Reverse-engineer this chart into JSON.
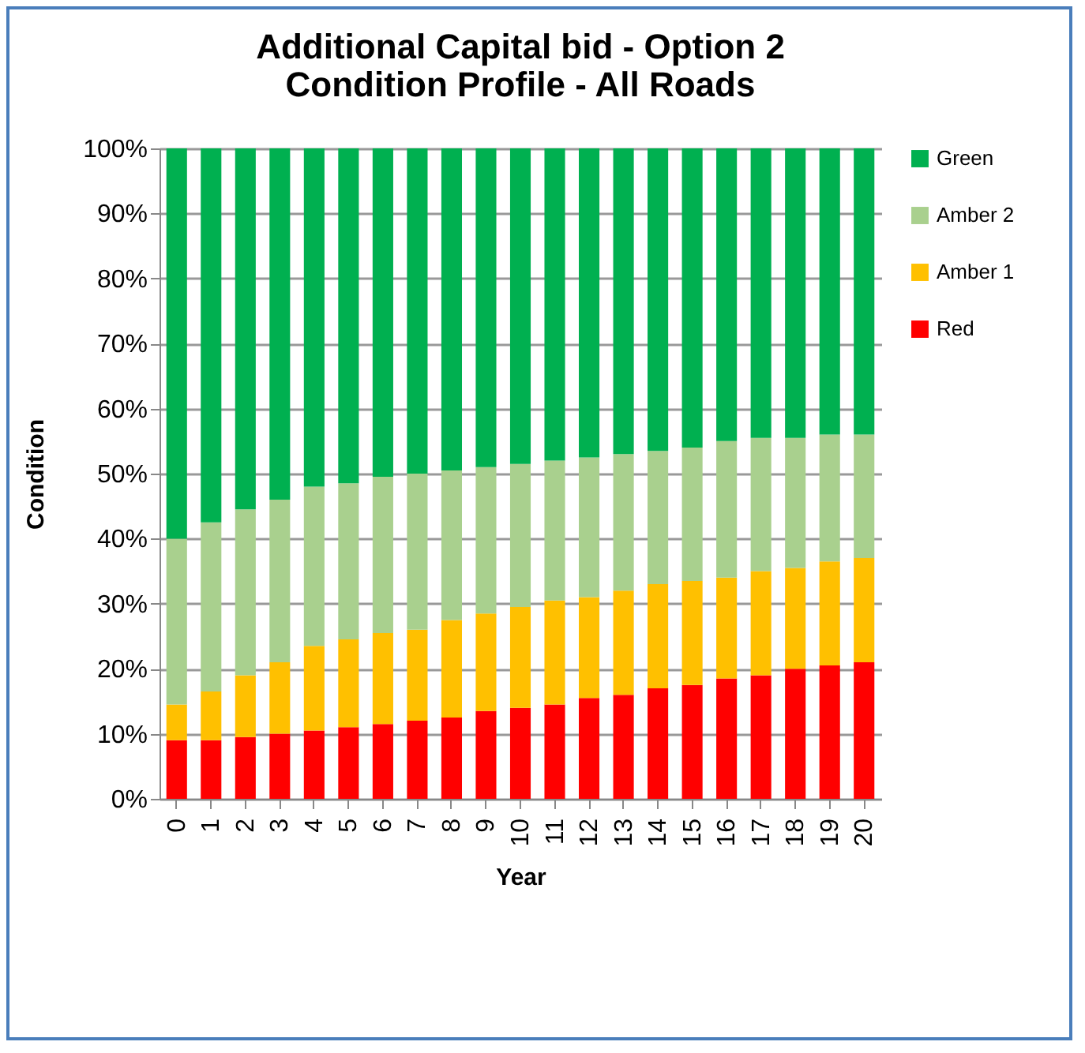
{
  "chart_data": {
    "type": "bar",
    "title": "Additional Capital bid - Option 2\nCondition Profile - All Roads",
    "xlabel": "Year",
    "ylabel": "Condition",
    "categories": [
      "0",
      "1",
      "2",
      "3",
      "4",
      "5",
      "6",
      "7",
      "8",
      "9",
      "10",
      "11",
      "12",
      "13",
      "14",
      "15",
      "16",
      "17",
      "18",
      "19",
      "20"
    ],
    "stacked": true,
    "series": [
      {
        "name": "Red",
        "color": "#ff0000",
        "values": [
          9,
          9,
          9.5,
          10,
          10.5,
          11,
          11.5,
          12,
          12.5,
          13.5,
          14,
          14.5,
          15.5,
          16,
          17,
          17.5,
          18.5,
          19,
          20,
          20.5,
          21
        ]
      },
      {
        "name": "Amber 1",
        "color": "#ffc000",
        "values": [
          5.5,
          7.5,
          9.5,
          11,
          13,
          13.5,
          14,
          14,
          15,
          15,
          15.5,
          16,
          15.5,
          16,
          16,
          16,
          15.5,
          16,
          15.5,
          16,
          16
        ]
      },
      {
        "name": "Amber 2",
        "color": "#a9d08e",
        "values": [
          25.5,
          26,
          25.5,
          25,
          24.5,
          24,
          24,
          24,
          23,
          22.5,
          22,
          21.5,
          21.5,
          21,
          20.5,
          20.5,
          21,
          20.5,
          20,
          19.5,
          19
        ]
      },
      {
        "name": "Green",
        "color": "#00b050",
        "values": [
          60,
          57.5,
          55.5,
          54,
          52,
          51.5,
          50.5,
          50,
          49.5,
          49,
          48.5,
          48,
          47.5,
          47,
          46.5,
          46,
          45,
          44.5,
          44.5,
          44,
          44
        ]
      }
    ],
    "ylim": [
      0,
      100
    ],
    "yticks": [
      {
        "value": 0,
        "label": "0%"
      },
      {
        "value": 10,
        "label": "10%"
      },
      {
        "value": 20,
        "label": "20%"
      },
      {
        "value": 30,
        "label": "30%"
      },
      {
        "value": 40,
        "label": "40%"
      },
      {
        "value": 50,
        "label": "50%"
      },
      {
        "value": 60,
        "label": "60%"
      },
      {
        "value": 70,
        "label": "70%"
      },
      {
        "value": 80,
        "label": "80%"
      },
      {
        "value": 90,
        "label": "90%"
      },
      {
        "value": 100,
        "label": "100%"
      }
    ],
    "grid": "y",
    "legend": "right"
  }
}
